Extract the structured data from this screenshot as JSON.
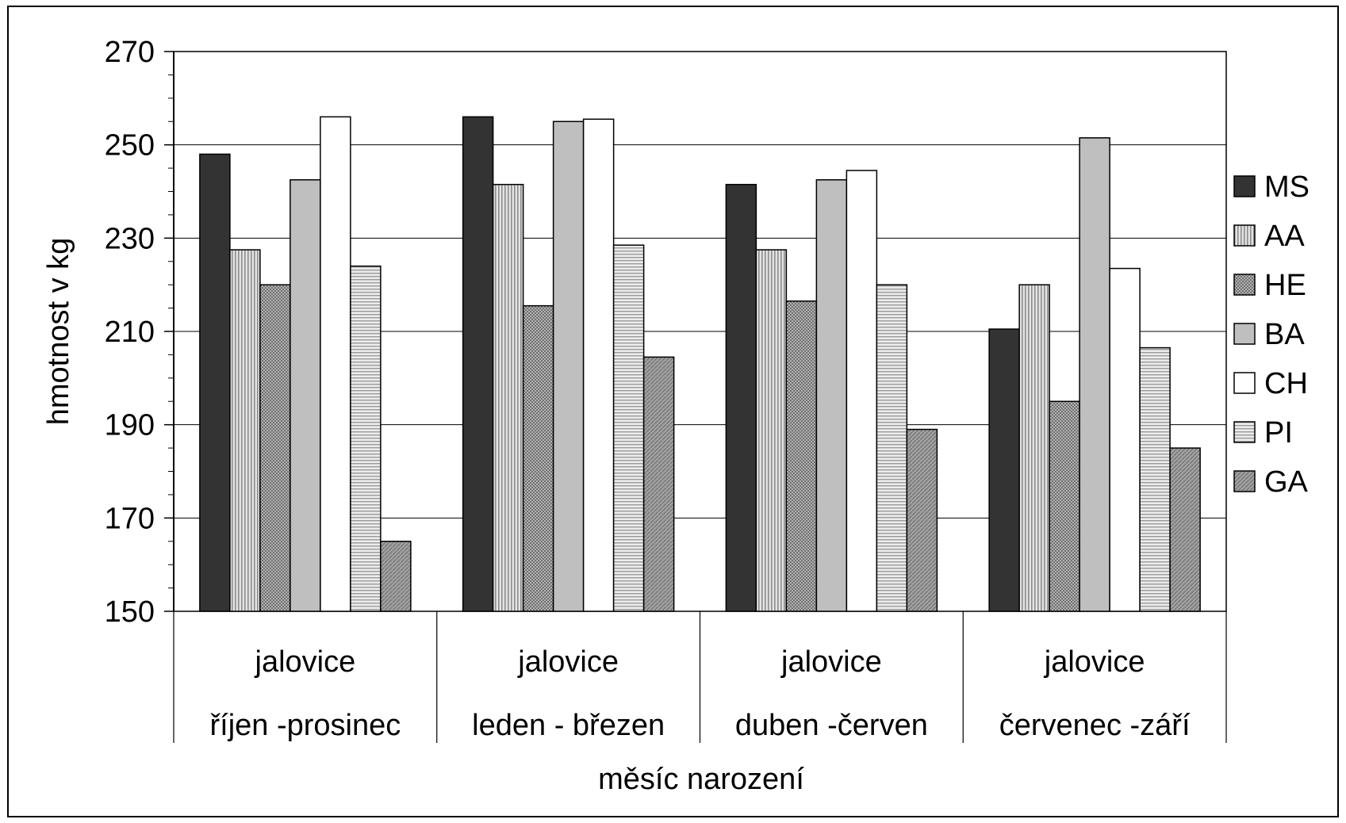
{
  "chart_data": {
    "type": "bar",
    "title": "",
    "xlabel": "měsíc narození",
    "ylabel": "hmotnost v kg",
    "ylim": [
      150,
      270
    ],
    "yticks": [
      150,
      170,
      190,
      210,
      230,
      250,
      270
    ],
    "grid": true,
    "legend_position": "right",
    "categories": [
      {
        "line1": "jalovice",
        "line2": "říjen -prosinec"
      },
      {
        "line1": "jalovice",
        "line2": "leden - březen"
      },
      {
        "line1": "jalovice",
        "line2": "duben -červen"
      },
      {
        "line1": "jalovice",
        "line2": "červenec -září"
      }
    ],
    "series": [
      {
        "name": "MS",
        "values": [
          248,
          256,
          241.5,
          210.5
        ]
      },
      {
        "name": "AA",
        "values": [
          227.5,
          241.5,
          227.5,
          220
        ]
      },
      {
        "name": "HE",
        "values": [
          220,
          215.5,
          216.5,
          195
        ]
      },
      {
        "name": "BA",
        "values": [
          242.5,
          255,
          242.5,
          251.5
        ]
      },
      {
        "name": "CH",
        "values": [
          256,
          255.5,
          244.5,
          223.5
        ]
      },
      {
        "name": "PI",
        "values": [
          224,
          228.5,
          220,
          206.5
        ]
      },
      {
        "name": "GA",
        "values": [
          165,
          204.5,
          189,
          185
        ]
      }
    ]
  }
}
